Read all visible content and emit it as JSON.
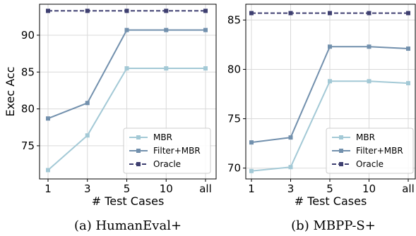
{
  "chart_data": [
    {
      "type": "line",
      "caption": "(a) HumanEval+",
      "xlabel": "# Test Cases",
      "ylabel": "Exec Acc",
      "categories": [
        "1",
        "3",
        "5",
        "10",
        "all"
      ],
      "yticks": [
        75,
        80,
        85,
        90
      ],
      "ylim": [
        70.5,
        94.2
      ],
      "grid": true,
      "legend_position": "bottom-right",
      "series": [
        {
          "name": "MBR",
          "color": "#a3c9d6",
          "dashed": false,
          "values": [
            71.7,
            76.4,
            85.5,
            85.5,
            85.5
          ]
        },
        {
          "name": "Filter+MBR",
          "color": "#7290ad",
          "dashed": false,
          "values": [
            78.7,
            80.8,
            90.7,
            90.7,
            90.7
          ]
        },
        {
          "name": "Oracle",
          "color": "#3e3f70",
          "dashed": true,
          "values": [
            93.3,
            93.3,
            93.3,
            93.3,
            93.3
          ]
        }
      ]
    },
    {
      "type": "line",
      "caption": "(b) MBPP-S+",
      "xlabel": "# Test Cases",
      "ylabel": "",
      "categories": [
        "1",
        "3",
        "5",
        "10",
        "all"
      ],
      "yticks": [
        70,
        75,
        80,
        85
      ],
      "ylim": [
        68.9,
        86.6
      ],
      "grid": true,
      "legend_position": "bottom-right",
      "series": [
        {
          "name": "MBR",
          "color": "#a3c9d6",
          "dashed": false,
          "values": [
            69.7,
            70.1,
            78.8,
            78.8,
            78.6
          ]
        },
        {
          "name": "Filter+MBR",
          "color": "#7290ad",
          "dashed": false,
          "values": [
            72.6,
            73.1,
            82.3,
            82.3,
            82.1
          ]
        },
        {
          "name": "Oracle",
          "color": "#3e3f70",
          "dashed": true,
          "values": [
            85.7,
            85.7,
            85.7,
            85.7,
            85.7
          ]
        }
      ]
    }
  ]
}
